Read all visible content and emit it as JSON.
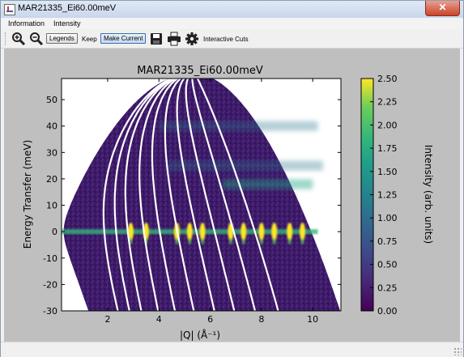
{
  "window": {
    "title": "MAR21335_Ei60.00meV",
    "close_label": "✕"
  },
  "menu": {
    "items": [
      "Information",
      "Intensity"
    ]
  },
  "toolbar": {
    "legends_label": "Legends",
    "keep_label": "Keep",
    "make_current_label": "Make Current",
    "interactive_cuts_label": "Interactive Cuts",
    "icons": [
      "zoom-in-icon",
      "zoom-out-icon",
      "save-icon",
      "print-icon",
      "gear-icon"
    ]
  },
  "chart_data": {
    "type": "heatmap",
    "title": "MAR21335_Ei60.00meV",
    "xlabel": "|Q| (Å⁻¹)",
    "ylabel": "Energy Transfer (meV)",
    "xlim": [
      0.2,
      11.1
    ],
    "ylim": [
      -30,
      58
    ],
    "xticks": [
      2,
      4,
      6,
      8,
      10
    ],
    "yticks": [
      -30,
      -20,
      -10,
      0,
      10,
      20,
      30,
      40,
      50
    ],
    "colorbar": {
      "label": "Intensity (arb. units)",
      "range": [
        0.0,
        2.5
      ],
      "ticks": [
        "0.00",
        "0.25",
        "0.50",
        "0.75",
        "1.00",
        "1.25",
        "1.50",
        "1.75",
        "2.00",
        "2.25",
        "2.50"
      ],
      "colormap": "viridis"
    },
    "features": {
      "elastic_line_energy": 0,
      "bragg_peak_q": [
        2.9,
        3.5,
        4.7,
        5.2,
        5.7,
        6.8,
        7.3,
        8.0,
        8.5,
        9.1,
        9.6
      ],
      "phonon_band_energies": [
        40,
        25,
        18
      ]
    }
  }
}
